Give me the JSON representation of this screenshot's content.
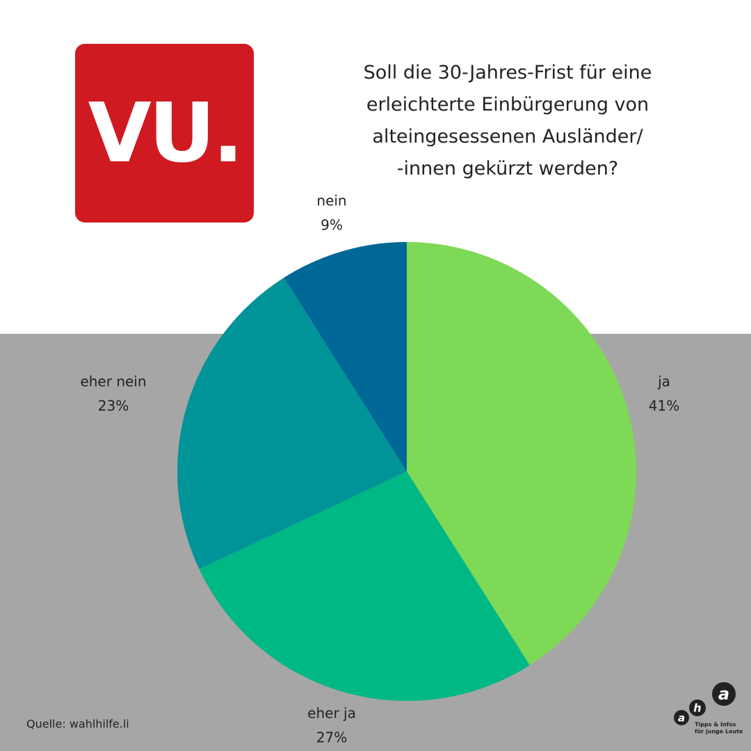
{
  "chart_data": {
    "type": "pie",
    "title": "Soll die 30-Jahres-Frist für eine\nerleichterte Einbürgerung von\nalteingesessenen Ausländer/\n-innen gekürzt werden?",
    "categories": [
      "ja",
      "eher ja",
      "eher nein",
      "nein"
    ],
    "values": [
      41,
      27,
      23,
      9
    ],
    "value_labels": [
      "41%",
      "27%",
      "23%",
      "9%"
    ],
    "colors": [
      "#7ed957",
      "#00b884",
      "#009499",
      "#006896"
    ],
    "source": "Quelle: wahlhilfe.li"
  },
  "logo": {
    "text": "VU."
  },
  "partner_logo": {
    "letters": [
      "a",
      "h",
      "a"
    ],
    "tagline": [
      "Tipps & Infos",
      "für junge Leute"
    ]
  }
}
